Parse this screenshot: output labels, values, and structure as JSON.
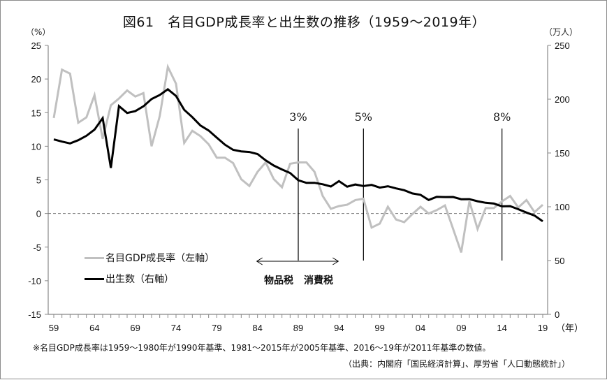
{
  "chart_data": {
    "type": "line",
    "title": "図61　名目GDP成長率と出生数の推移（1959～2019年）",
    "xlabel": "（年）",
    "ylabel_left": "（%）",
    "ylabel_right": "（万人）",
    "ylim_left": [
      -15,
      25
    ],
    "ylim_right": [
      0,
      250
    ],
    "yticks_left": [
      "25",
      "20",
      "15",
      "10",
      "5",
      "0",
      "-5",
      "-10",
      "-15"
    ],
    "yticks_right": [
      "250",
      "200",
      "150",
      "100",
      "50",
      "0"
    ],
    "xtick_labels": [
      "59",
      "64",
      "69",
      "74",
      "79",
      "84",
      "89",
      "94",
      "99",
      "04",
      "09",
      "14",
      "19"
    ],
    "x": [
      1959,
      1960,
      1961,
      1962,
      1963,
      1964,
      1965,
      1966,
      1967,
      1968,
      1969,
      1970,
      1971,
      1972,
      1973,
      1974,
      1975,
      1976,
      1977,
      1978,
      1979,
      1980,
      1981,
      1982,
      1983,
      1984,
      1985,
      1986,
      1987,
      1988,
      1989,
      1990,
      1991,
      1992,
      1993,
      1994,
      1995,
      1996,
      1997,
      1998,
      1999,
      2000,
      2001,
      2002,
      2003,
      2004,
      2005,
      2006,
      2007,
      2008,
      2009,
      2010,
      2011,
      2012,
      2013,
      2014,
      2015,
      2016,
      2017,
      2018,
      2019
    ],
    "zero_line": "dashed",
    "grid": false,
    "legend_position": "lower-left",
    "series": [
      {
        "name": "名目GDP成長率（左軸）",
        "axis": "left",
        "color": "#c0c0c0",
        "values": [
          14.2,
          21.4,
          20.8,
          13.5,
          14.3,
          17.6,
          11.1,
          16.1,
          17.1,
          18.3,
          17.4,
          17.9,
          10.0,
          14.5,
          21.8,
          19.3,
          10.5,
          12.3,
          11.5,
          10.3,
          8.3,
          8.3,
          7.5,
          5.1,
          4.1,
          6.2,
          7.6,
          5.1,
          3.9,
          7.4,
          7.6,
          7.6,
          6.2,
          2.6,
          0.7,
          1.1,
          1.3,
          2.0,
          2.2,
          -2.1,
          -1.5,
          1.0,
          -0.9,
          -1.3,
          -0.1,
          1.0,
          0.0,
          0.5,
          1.2,
          -2.3,
          -5.8,
          1.8,
          -2.3,
          0.8,
          0.8,
          1.8,
          2.6,
          0.9,
          2.0,
          0.2,
          1.3
        ]
      },
      {
        "name": "出生数（右軸）",
        "axis": "right",
        "color": "#000000",
        "values": [
          162.6,
          160.6,
          158.9,
          161.9,
          166.0,
          171.7,
          182.4,
          136.1,
          193.6,
          187.2,
          188.9,
          193.4,
          200.1,
          203.9,
          209.2,
          203.0,
          190.1,
          183.3,
          175.5,
          170.9,
          164.3,
          157.7,
          152.9,
          151.5,
          150.9,
          149.0,
          143.2,
          138.3,
          134.7,
          131.4,
          124.7,
          122.2,
          122.3,
          120.9,
          118.8,
          123.8,
          118.7,
          120.7,
          119.2,
          120.3,
          117.8,
          119.1,
          117.1,
          115.4,
          112.4,
          111.1,
          106.3,
          109.3,
          109.0,
          109.1,
          107.0,
          107.1,
          105.1,
          103.7,
          103.0,
          100.4,
          100.6,
          97.7,
          94.6,
          91.8,
          86.5
        ]
      }
    ],
    "annotations": [
      {
        "text": "3%",
        "year": 1989
      },
      {
        "text": "5%",
        "year": 1997
      },
      {
        "text": "8%",
        "year": 2014
      }
    ],
    "tax_range": {
      "from_year": 1984,
      "to_year": 1994,
      "left_label": "物品税",
      "right_label": "消費税"
    }
  },
  "footnote": "※名目GDP成長率は1959～1980年が1990年基準、1981～2015年が2005年基準、2016～19年が2011年基準の数値。",
  "source": "（出典：内閣府「国民経済計算」、厚労省「人口動態統計」）"
}
